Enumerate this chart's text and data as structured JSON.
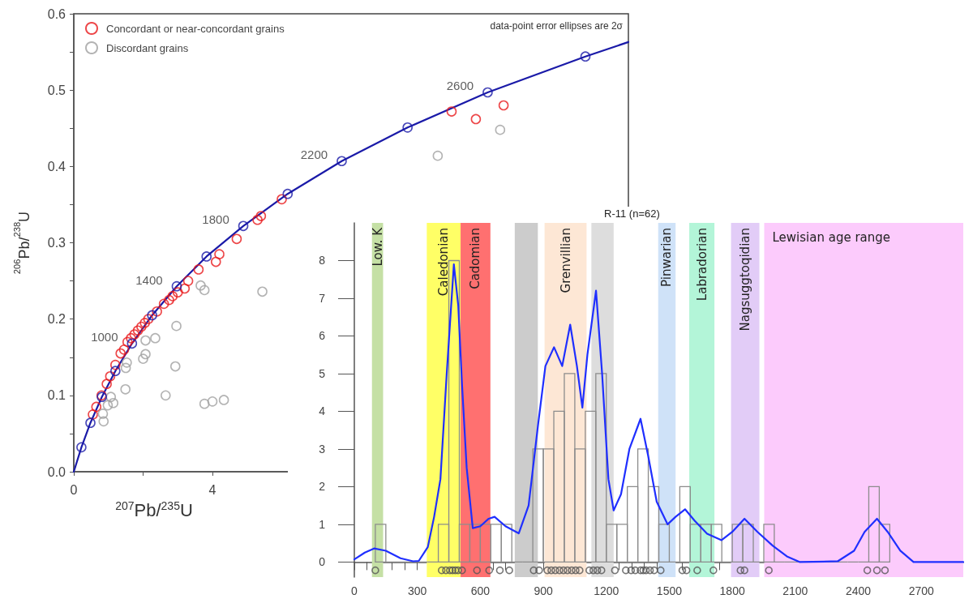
{
  "chart_data": [
    {
      "type": "scatter",
      "xlabel": "$^{207}$Pb/$^{235}$U",
      "ylabel": "$^{206}$Pb/$^{238}$U",
      "legend": "top left",
      "grid": false,
      "xlim": [
        0,
        16
      ],
      "xticks": [
        0,
        {
          "value": 2,
          "label": null
        },
        4
      ],
      "ylim": [
        0,
        0.6
      ],
      "yticks": [
        {
          "value": 0,
          "label": "0.0"
        },
        {
          "value": 0.05,
          "label": null
        },
        0.1,
        {
          "value": 0.15,
          "label": null
        },
        0.2,
        {
          "value": 0.25,
          "label": null
        },
        0.3,
        {
          "value": 0.35,
          "label": null
        },
        0.4,
        {
          "value": 0.45,
          "label": null
        },
        0.5,
        {
          "value": 0.55,
          "label": null
        },
        0.6
      ],
      "series": [
        {
          "name": "Concordant or near-concordant grains",
          "color": "#e8191b",
          "marker": "circle",
          "x": [
            0.55,
            0.65,
            0.8,
            0.95,
            1.05,
            1.2,
            1.35,
            1.45,
            1.55,
            1.65,
            1.75,
            1.85,
            1.95,
            2.05,
            2.15,
            2.4,
            2.6,
            2.75,
            2.85,
            3.0,
            3.2,
            3.3,
            3.6,
            4.1,
            4.2,
            4.7,
            5.3,
            5.4,
            6.0,
            10.9,
            11.6,
            12.4
          ],
          "values": [
            0.075,
            0.085,
            0.1,
            0.115,
            0.125,
            0.14,
            0.155,
            0.16,
            0.17,
            0.175,
            0.18,
            0.185,
            0.19,
            0.195,
            0.2,
            0.21,
            0.22,
            0.225,
            0.23,
            0.235,
            0.24,
            0.25,
            0.265,
            0.275,
            0.285,
            0.305,
            0.33,
            0.335,
            0.357,
            0.472,
            0.462,
            0.48
          ]
        },
        {
          "name": "Discordant grains",
          "color": "#a0a0a0",
          "marker": "circle",
          "x": [
            0.84,
            0.86,
            0.98,
            1.07,
            1.14,
            1.49,
            1.5,
            1.53,
            2.0,
            2.07,
            2.07,
            2.35,
            2.65,
            2.93,
            2.96,
            3.66,
            3.77,
            3.77,
            4.0,
            4.33,
            5.44,
            10.5,
            12.3
          ],
          "values": [
            0.076,
            0.066,
            0.087,
            0.098,
            0.09,
            0.108,
            0.136,
            0.143,
            0.148,
            0.154,
            0.172,
            0.175,
            0.1,
            0.138,
            0.191,
            0.244,
            0.238,
            0.089,
            0.092,
            0.094,
            0.236,
            0.414,
            0.448
          ]
        },
        {
          "type": "line",
          "color": "#1a1aa8",
          "marker": "none",
          "line_style": "solid",
          "x": [
            0,
            0.22,
            0.48,
            0.81,
            1.2,
            1.68,
            2.26,
            2.97,
            3.83,
            4.89,
            6.17,
            7.73,
            9.63,
            11.94,
            14.76,
            16
          ],
          "values": [
            0,
            0.032,
            0.064,
            0.098,
            0.132,
            0.168,
            0.205,
            0.243,
            0.282,
            0.322,
            0.364,
            0.407,
            0.451,
            0.497,
            0.544,
            0.563
          ]
        },
        {
          "type": "scatter",
          "color": "#1a1aa8",
          "marker": "circle",
          "x": [
            0.22,
            0.48,
            0.81,
            1.2,
            1.68,
            2.26,
            2.97,
            3.83,
            4.89,
            6.17,
            7.73,
            9.63,
            11.94,
            14.76
          ],
          "values": [
            0.032,
            0.064,
            0.098,
            0.132,
            0.168,
            0.205,
            0.243,
            0.282,
            0.322,
            0.364,
            0.407,
            0.451,
            0.497,
            0.544
          ]
        }
      ],
      "annotations": [
        "data-point error ellipses are 2σ",
        {
          "text": "1000",
          "x": 1.68,
          "y": 0.168
        },
        {
          "text": "1400",
          "x": 2.97,
          "y": 0.243
        },
        {
          "text": "1800",
          "x": 4.89,
          "y": 0.322
        },
        {
          "text": "2200",
          "x": 7.73,
          "y": 0.407
        },
        {
          "text": "2600",
          "x": 11.94,
          "y": 0.497
        }
      ]
    },
    {
      "type": "histogram",
      "color": "#8c8c8c",
      "grid": false,
      "bins": [
        100,
        150,
        200,
        250,
        300,
        350,
        400,
        450,
        500,
        550,
        600,
        650,
        700,
        750,
        800,
        850,
        900,
        950,
        1000,
        1050,
        1100,
        1150,
        1200,
        1250,
        1300,
        1350,
        1400,
        1450,
        1500,
        1550,
        1600,
        1650,
        1700,
        1750,
        1800,
        1850,
        1900,
        1950,
        2000,
        2050,
        2100,
        2150,
        2200,
        2250,
        2300,
        2350,
        2400,
        2450,
        2500,
        2550
      ],
      "values": [
        1,
        0,
        0,
        0,
        0,
        0,
        1,
        8,
        1,
        1,
        1,
        1,
        1,
        0,
        0,
        3,
        3,
        4,
        5,
        3,
        4,
        5,
        1,
        1,
        2,
        3,
        2,
        1,
        0,
        2,
        1,
        1,
        1,
        0,
        1,
        1,
        0,
        1,
        0,
        0,
        0,
        0,
        0,
        0,
        0,
        0,
        0,
        2,
        1
      ],
      "xlim": [
        0,
        2900
      ],
      "xticks": [
        0,
        {
          "value": 60,
          "label": null
        },
        {
          "value": 120,
          "label": null
        },
        {
          "value": 180,
          "label": null
        },
        {
          "value": 240,
          "label": null
        },
        300,
        {
          "value": 360,
          "label": null
        },
        {
          "value": 420,
          "label": null
        },
        {
          "value": 480,
          "label": null
        },
        {
          "value": 540,
          "label": null
        },
        600,
        {
          "value": 660,
          "label": null
        },
        {
          "value": 720,
          "label": null
        },
        {
          "value": 780,
          "label": null
        },
        {
          "value": 840,
          "label": null
        },
        900,
        {
          "value": 960,
          "label": null
        },
        {
          "value": 1020,
          "label": null
        },
        {
          "value": 1080,
          "label": null
        },
        {
          "value": 1140,
          "label": null
        },
        1200,
        {
          "value": 1260,
          "label": null
        },
        {
          "value": 1320,
          "label": null
        },
        {
          "value": 1380,
          "label": null
        },
        {
          "value": 1440,
          "label": null
        },
        1500,
        {
          "value": 1560,
          "label": null
        },
        {
          "value": 1620,
          "label": null
        },
        {
          "value": 1680,
          "label": null
        },
        {
          "value": 1740,
          "label": null
        },
        1800,
        {
          "value": 1860,
          "label": null
        },
        {
          "value": 1920,
          "label": null
        },
        {
          "value": 1980,
          "label": null
        },
        {
          "value": 2040,
          "label": null
        },
        2100,
        {
          "value": 2160,
          "label": null
        },
        {
          "value": 2220,
          "label": null
        },
        {
          "value": 2280,
          "label": null
        },
        {
          "value": 2340,
          "label": null
        },
        2400,
        {
          "value": 2460,
          "label": null
        },
        {
          "value": 2520,
          "label": null
        },
        {
          "value": 2580,
          "label": null
        },
        {
          "value": 2640,
          "label": null
        },
        2700,
        {
          "value": 2760,
          "label": null
        },
        {
          "value": 2820,
          "label": null
        },
        {
          "value": 2880,
          "label": null
        }
      ],
      "ylim": [
        -0.4,
        9
      ],
      "yticks": [
        0,
        1,
        2,
        3,
        4,
        5,
        6,
        7,
        8
      ],
      "series": [
        {
          "type": "line",
          "color": "#1f2fff",
          "marker": "none",
          "line_style": "solid",
          "x": [
            0,
            50,
            94,
            150,
            220,
            280,
            307,
            350,
            380,
            410,
            440,
            474,
            495,
            513,
            535,
            564,
            600,
            640,
            668,
            720,
            783,
            830,
            874,
            910,
            951,
            990,
            1028,
            1060,
            1086,
            1110,
            1151,
            1180,
            1210,
            1235,
            1270,
            1310,
            1363,
            1400,
            1440,
            1492,
            1530,
            1575,
            1620,
            1680,
            1749,
            1800,
            1858,
            1920,
            1993,
            2060,
            2122,
            2302,
            2380,
            2430,
            2489,
            2540,
            2600,
            2663,
            2900
          ],
          "values": [
            0.07,
            0.25,
            0.36,
            0.3,
            0.1,
            0.02,
            0.03,
            0.4,
            1.2,
            2.2,
            5.0,
            7.9,
            6.8,
            4.7,
            2.5,
            0.9,
            0.95,
            1.15,
            1.2,
            0.95,
            0.76,
            1.5,
            3.6,
            5.2,
            5.7,
            5.2,
            6.3,
            5.2,
            4.1,
            5.5,
            7.2,
            5.0,
            2.2,
            1.37,
            1.8,
            3.0,
            3.8,
            2.8,
            1.6,
            1.0,
            1.2,
            1.4,
            1.1,
            0.75,
            0.58,
            0.8,
            1.15,
            0.8,
            0.43,
            0.15,
            0,
            0.02,
            0.3,
            0.8,
            1.15,
            0.8,
            0.3,
            0,
            0
          ]
        },
        {
          "type": "scatter",
          "color": "#555555",
          "marker": "circle",
          "x": [
            100,
            416,
            436,
            455,
            468,
            481,
            494,
            513,
            584,
            642,
            693,
            738,
            854,
            880,
            919,
            938,
            957,
            977,
            996,
            1015,
            1035,
            1054,
            1073,
            1119,
            1138,
            1157,
            1177,
            1241,
            1293,
            1318,
            1338,
            1363,
            1376,
            1389,
            1408,
            1428,
            1459,
            1562,
            1582,
            1633,
            1710,
            1839,
            1858,
            1974,
            2443,
            2489,
            2527
          ],
          "values": [
            -0.22,
            -0.22,
            -0.22,
            -0.22,
            -0.22,
            -0.22,
            -0.22,
            -0.22,
            -0.22,
            -0.22,
            -0.22,
            -0.22,
            -0.22,
            -0.22,
            -0.22,
            -0.22,
            -0.22,
            -0.22,
            -0.22,
            -0.22,
            -0.22,
            -0.22,
            -0.22,
            -0.22,
            -0.22,
            -0.22,
            -0.22,
            -0.22,
            -0.22,
            -0.22,
            -0.22,
            -0.22,
            -0.22,
            -0.22,
            -0.22,
            -0.22,
            -0.22,
            -0.22,
            -0.22,
            -0.22,
            -0.22,
            -0.22,
            -0.22,
            -0.22,
            -0.22,
            -0.22,
            -0.22
          ]
        }
      ],
      "bands": [
        {
          "axis": "x",
          "from": 84,
          "to": 137,
          "label": "Low. K",
          "color": "#c5e0a5"
        },
        {
          "axis": "x",
          "from": 345,
          "to": 506,
          "label": "Caledonian",
          "color": "#ffff66"
        },
        {
          "axis": "x",
          "from": 506,
          "to": 648,
          "label": "Cadomian",
          "color": "#ff7070"
        },
        {
          "axis": "x",
          "from": 764,
          "to": 874,
          "color": "#cccccc"
        },
        {
          "axis": "x",
          "from": 906,
          "to": 1106,
          "label": "Grenvillian",
          "color": "#fde7d5"
        },
        {
          "axis": "x",
          "from": 1129,
          "to": 1235,
          "color": "#dddddd"
        },
        {
          "axis": "x",
          "from": 1447,
          "to": 1530,
          "label": "Pinwarian",
          "color": "#cfe2f8"
        },
        {
          "axis": "x",
          "from": 1595,
          "to": 1715,
          "label": "Labradorian",
          "color": "#b3f5d8"
        },
        {
          "axis": "x",
          "from": 1794,
          "to": 1929,
          "label": "Nagsuggtoqidian",
          "color": "#e2ccf7"
        },
        {
          "axis": "x",
          "from": 1952,
          "to": 2900,
          "label": "Lewisian age range",
          "color": "#fccbfc"
        }
      ],
      "annotations": [
        "R-11 (n=62)"
      ]
    }
  ]
}
